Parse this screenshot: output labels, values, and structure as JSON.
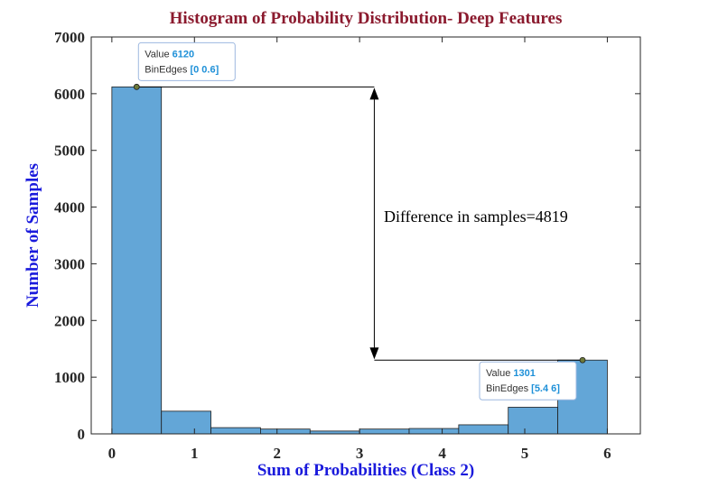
{
  "chart_data": {
    "type": "bar",
    "title": "Histogram of Probability Distribution- Deep Features",
    "xlabel": "Sum of Probabilities (Class 2)",
    "ylabel": "Number of Samples",
    "xlim": [
      -0.25,
      6.4
    ],
    "ylim": [
      0,
      7000
    ],
    "xticks": [
      0,
      1,
      2,
      3,
      4,
      5,
      6
    ],
    "yticks": [
      0,
      1000,
      2000,
      3000,
      4000,
      5000,
      6000,
      7000
    ],
    "bin_edges": [
      0,
      0.6,
      1.2,
      1.8,
      2.4,
      3.0,
      3.6,
      4.2,
      4.8,
      5.4,
      6.0
    ],
    "values": [
      6120,
      400,
      110,
      85,
      50,
      85,
      95,
      160,
      470,
      1301
    ],
    "bar_color": "#63a6d7",
    "grid": false,
    "annotations": [
      {
        "text": "Difference in samples=4819",
        "x": 3.2,
        "y": 3850
      }
    ],
    "datatips": [
      {
        "value_label": "Value",
        "value": "6120",
        "edges_label": "BinEdges",
        "edges": "[0 0.6]",
        "x": 0.3,
        "y": 6120
      },
      {
        "value_label": "Value",
        "value": "1301",
        "edges_label": "BinEdges",
        "edges": "[5.4 6]",
        "x": 5.7,
        "y": 1301
      }
    ]
  }
}
